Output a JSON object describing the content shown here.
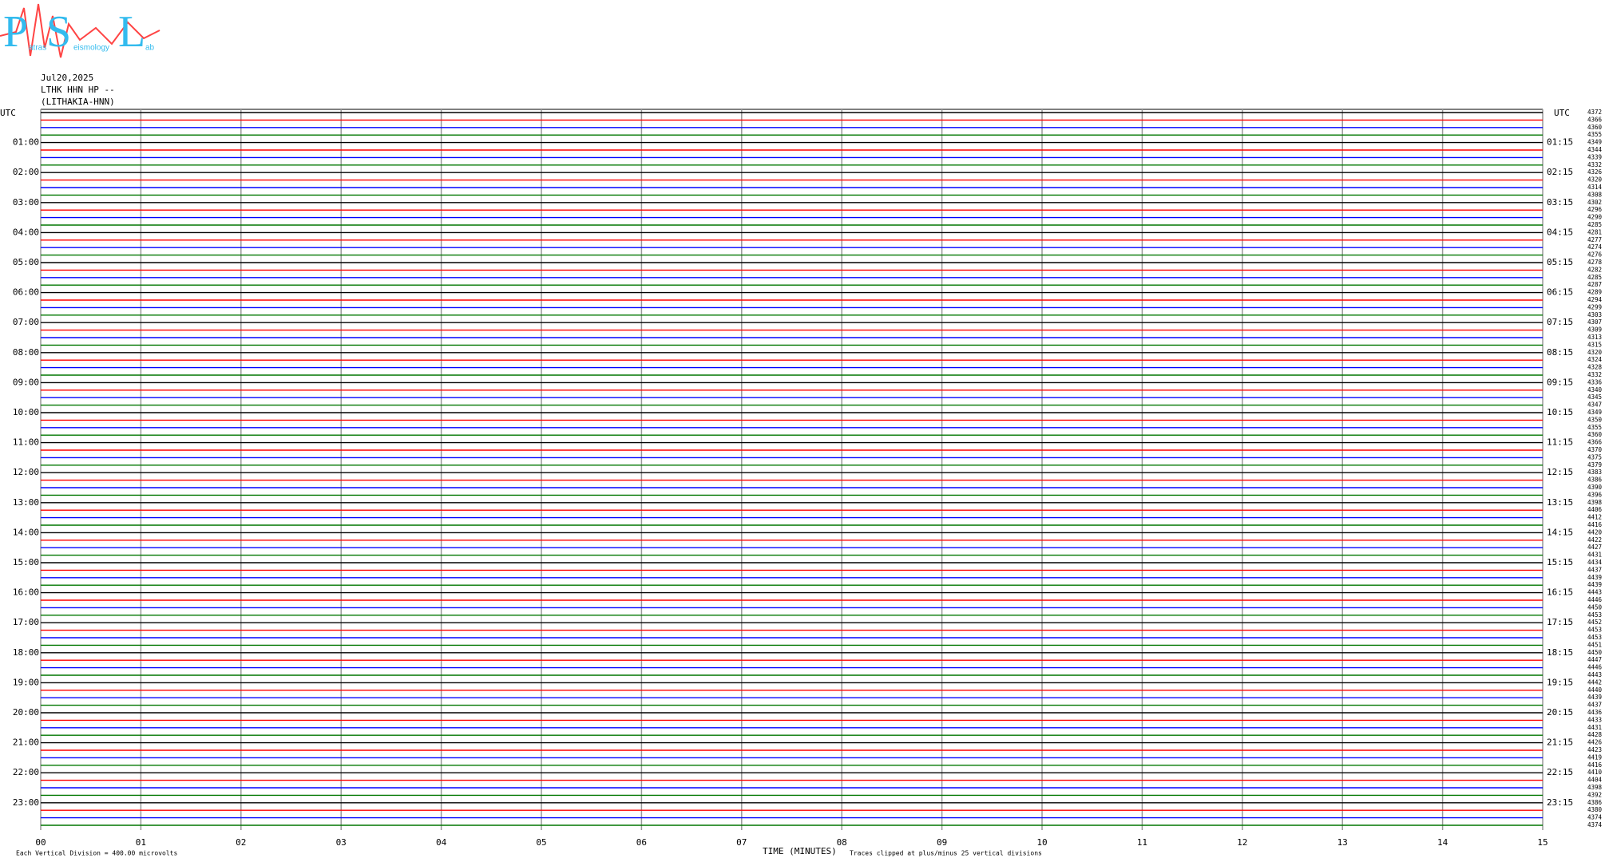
{
  "logo": {
    "letters": [
      "P",
      "S",
      "L"
    ],
    "small": [
      "atras",
      "eismology",
      "ab"
    ]
  },
  "header": {
    "date": "Jul20,2025",
    "station": "LTHK HHN HP --",
    "location": "(LITHAKIA-HNN)"
  },
  "utc_left": "UTC",
  "utc_right": "UTC",
  "hours_left": [
    "01:00",
    "02:00",
    "03:00",
    "04:00",
    "05:00",
    "06:00",
    "07:00",
    "08:00",
    "09:00",
    "10:00",
    "11:00",
    "12:00",
    "13:00",
    "14:00",
    "15:00",
    "16:00",
    "17:00",
    "18:00",
    "19:00",
    "20:00",
    "21:00",
    "22:00",
    "23:00"
  ],
  "hours_right": [
    "01:15",
    "02:15",
    "03:15",
    "04:15",
    "05:15",
    "06:15",
    "07:15",
    "08:15",
    "09:15",
    "10:15",
    "11:15",
    "12:15",
    "13:15",
    "14:15",
    "15:15",
    "16:15",
    "17:15",
    "18:15",
    "19:15",
    "20:15",
    "21:15",
    "22:15",
    "23:15"
  ],
  "x_ticks": [
    "00",
    "01",
    "02",
    "03",
    "04",
    "05",
    "06",
    "07",
    "08",
    "09",
    "10",
    "11",
    "12",
    "13",
    "14",
    "15"
  ],
  "x_label": "TIME (MINUTES)",
  "footer_left": "Each Vertical Division =  400.00 microvolts",
  "footer_right": "Traces clipped at plus/minus 25 vertical divisions",
  "trace_colors": [
    "#000000",
    "#ff0000",
    "#0000ff",
    "#007700"
  ],
  "trace_counts": [
    4372,
    4366,
    4360,
    4355,
    4349,
    4344,
    4339,
    4332,
    4326,
    4320,
    4314,
    4308,
    4302,
    4296,
    4290,
    4285,
    4281,
    4277,
    4274,
    4276,
    4278,
    4282,
    4285,
    4287,
    4289,
    4294,
    4299,
    4303,
    4307,
    4309,
    4313,
    4315,
    4320,
    4324,
    4328,
    4332,
    4336,
    4340,
    4345,
    4347,
    4349,
    4350,
    4355,
    4360,
    4366,
    4370,
    4375,
    4379,
    4383,
    4386,
    4390,
    4396,
    4398,
    4406,
    4412,
    4416,
    4420,
    4422,
    4427,
    4431,
    4434,
    4437,
    4439,
    4439,
    4443,
    4446,
    4450,
    4453,
    4452,
    4453,
    4453,
    4451,
    4450,
    4447,
    4446,
    4443,
    4442,
    4440,
    4439,
    4437,
    4436,
    4433,
    4431,
    4428,
    4426,
    4423,
    4419,
    4416,
    4410,
    4404,
    4398,
    4392,
    4386,
    4380,
    4374,
    4374
  ]
}
